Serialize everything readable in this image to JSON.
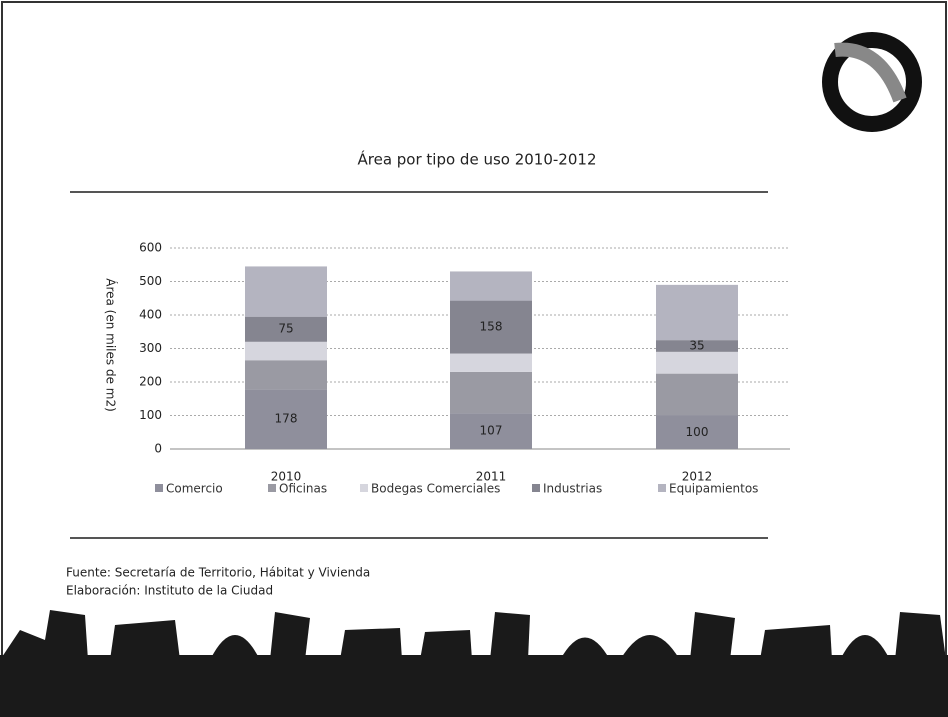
{
  "chart_data": {
    "type": "stacked-bar",
    "title": "Área por tipo de uso 2010-2012",
    "y_label": "Área (en miles de m2)",
    "categories": [
      "2010",
      "2011",
      "2012"
    ],
    "ylim": [
      0,
      600
    ],
    "yticks": [
      0,
      100,
      200,
      300,
      400,
      500,
      600
    ],
    "grid": true,
    "legend": "bottom",
    "series": [
      {
        "name": "Comercio",
        "color": "#8f8f9c",
        "values": [
          178,
          107,
          100
        ],
        "value_labels": [
          "178",
          "107",
          "100"
        ]
      },
      {
        "name": "Oficinas",
        "color": "#9a9aa3",
        "values": [
          87,
          123,
          125
        ]
      },
      {
        "name": "Bodegas Comerciales",
        "color": "#d6d6de",
        "values": [
          55,
          55,
          65
        ]
      },
      {
        "name": "Industrias",
        "color": "#858590",
        "values": [
          75,
          158,
          35
        ],
        "value_labels": [
          "75",
          "158",
          "35"
        ]
      },
      {
        "name": "Equipamientos",
        "color": "#b4b4c0",
        "values": [
          150,
          87,
          165
        ]
      }
    ],
    "source": "Fuente: Secretaría de Territorio, Hábitat y Vivienda",
    "credit": "Elaboración: Instituto de la Ciudad"
  }
}
